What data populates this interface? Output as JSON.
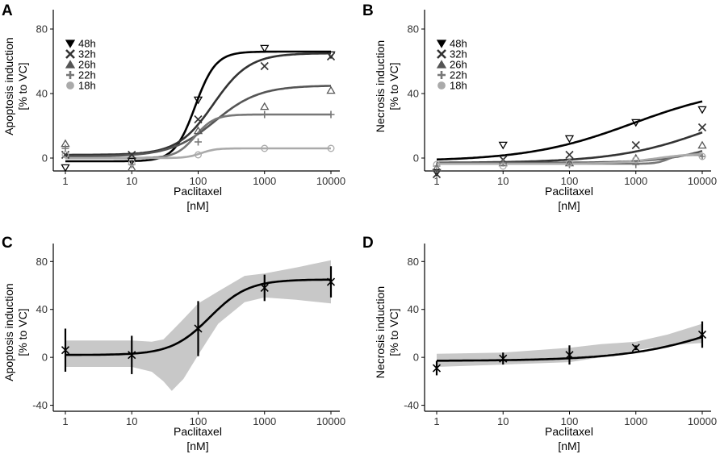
{
  "figure": {
    "xlabel_line1": "Paclitaxel",
    "xlabel_line2": "[nM]"
  },
  "chart_data": [
    {
      "panel": "A",
      "type": "line",
      "ylabel_line1": "Apoptosis induction",
      "ylabel_line2": "[% to VC]",
      "x_ticks": [
        "1",
        "10",
        "100",
        "1000",
        "10000"
      ],
      "y_ticks": [
        "0",
        "40",
        "80"
      ],
      "ylim": [
        -8,
        92
      ],
      "x": [
        1,
        10,
        100,
        1000,
        10000
      ],
      "legend_position": "top-left",
      "series": [
        {
          "name": "48h",
          "marker": "triangle-down",
          "color": "#000000",
          "points": [
            -6,
            -2,
            36,
            68,
            64
          ],
          "curve": {
            "bottom": -2,
            "top": 66,
            "ec50": 90,
            "hill": 2.8
          }
        },
        {
          "name": "32h",
          "marker": "x",
          "color": "#333333",
          "points": [
            2,
            2,
            24,
            57,
            63
          ],
          "curve": {
            "bottom": 2,
            "top": 65,
            "ec50": 170,
            "hill": 1.6
          }
        },
        {
          "name": "26h",
          "marker": "triangle-up",
          "color": "#555555",
          "points": [
            9,
            -6,
            17,
            32,
            42
          ],
          "curve": {
            "bottom": 1,
            "top": 45,
            "ec50": 180,
            "hill": 1.3
          }
        },
        {
          "name": "22h",
          "marker": "plus",
          "color": "#777777",
          "points": [
            6,
            -4,
            10,
            27,
            27
          ],
          "curve": {
            "bottom": 0,
            "top": 27,
            "ec50": 90,
            "hill": 3.0
          }
        },
        {
          "name": "18h",
          "marker": "circle",
          "color": "#aaaaaa",
          "points": [
            2,
            -3,
            2,
            6,
            6
          ],
          "curve": {
            "bottom": 0,
            "top": 6,
            "ec50": 110,
            "hill": 4.0
          }
        }
      ]
    },
    {
      "panel": "B",
      "type": "line",
      "ylabel_line1": "Necrosis induction",
      "ylabel_line2": "[% to VC]",
      "x_ticks": [
        "1",
        "10",
        "100",
        "1000",
        "10000"
      ],
      "y_ticks": [
        "0",
        "40",
        "80"
      ],
      "ylim": [
        -8,
        92
      ],
      "x": [
        1,
        10,
        100,
        1000,
        10000
      ],
      "legend_position": "top-left",
      "series": [
        {
          "name": "48h",
          "marker": "triangle-down",
          "color": "#000000",
          "points": [
            -9,
            8,
            12,
            22,
            30
          ],
          "curve": {
            "bottom": -2,
            "top": 45,
            "ec50": 900,
            "hill": 0.55
          }
        },
        {
          "name": "32h",
          "marker": "x",
          "color": "#333333",
          "points": [
            -10,
            -1,
            2,
            8,
            19
          ],
          "curve": {
            "bottom": -3,
            "top": 40,
            "ec50": 15000,
            "hill": 0.6
          }
        },
        {
          "name": "26h",
          "marker": "triangle-up",
          "color": "#555555",
          "points": [
            -6,
            -3,
            -3,
            0,
            8
          ],
          "curve": {
            "bottom": -3,
            "top": 30,
            "ec50": 40000,
            "hill": 0.9
          }
        },
        {
          "name": "22h",
          "marker": "plus",
          "color": "#777777",
          "points": [
            -5,
            -3,
            -4,
            -4,
            1
          ],
          "curve": {
            "bottom": -3.5,
            "top": 2,
            "ec50": 3000,
            "hill": 5.0
          }
        },
        {
          "name": "18h",
          "marker": "circle",
          "color": "#aaaaaa",
          "points": [
            -4,
            -5,
            -3,
            -1,
            1
          ],
          "curve": {
            "bottom": -3.5,
            "top": 3,
            "ec50": 2000,
            "hill": 1.5
          }
        }
      ]
    },
    {
      "panel": "C",
      "type": "line",
      "ylabel_line1": "Apoptosis induction",
      "ylabel_line2": "[% to VC]",
      "x_ticks": [
        "1",
        "10",
        "100",
        "1000",
        "10000"
      ],
      "y_ticks": [
        "-40",
        "0",
        "40",
        "80"
      ],
      "ylim": [
        -45,
        95
      ],
      "x": [
        1,
        10,
        100,
        1000,
        10000
      ],
      "mean": [
        6,
        2,
        24,
        58,
        63
      ],
      "error": [
        18,
        16,
        23,
        11,
        13
      ],
      "curve": {
        "bottom": 2,
        "top": 65,
        "ec50": 150,
        "hill": 1.5
      },
      "band": {
        "x": [
          1,
          10,
          20,
          30,
          40,
          60,
          100,
          200,
          500,
          1000,
          3000,
          10000
        ],
        "upper": [
          14,
          14,
          13,
          15,
          22,
          32,
          45,
          55,
          68,
          70,
          75,
          81
        ],
        "lower": [
          -8,
          -8,
          -12,
          -20,
          -28,
          -18,
          2,
          28,
          46,
          50,
          48,
          45
        ]
      }
    },
    {
      "panel": "D",
      "type": "line",
      "ylabel_line1": "Necrosis induction",
      "ylabel_line2": "[% to VC]",
      "x_ticks": [
        "1",
        "10",
        "100",
        "1000",
        "10000"
      ],
      "y_ticks": [
        "-40",
        "0",
        "40",
        "80"
      ],
      "ylim": [
        -45,
        95
      ],
      "x": [
        1,
        10,
        100,
        1000,
        10000
      ],
      "mean": [
        -9,
        -1,
        2,
        8,
        19
      ],
      "error": [
        6,
        5,
        8,
        2,
        11
      ],
      "curve": {
        "bottom": -3,
        "top": 60,
        "ec50": 40000,
        "hill": 0.55
      },
      "band": {
        "x": [
          1,
          10,
          100,
          300,
          1000,
          3000,
          10000
        ],
        "upper": [
          3,
          4,
          8,
          11,
          13,
          19,
          28
        ],
        "lower": [
          -8,
          -6,
          -4,
          0,
          6,
          10,
          12
        ]
      }
    }
  ]
}
